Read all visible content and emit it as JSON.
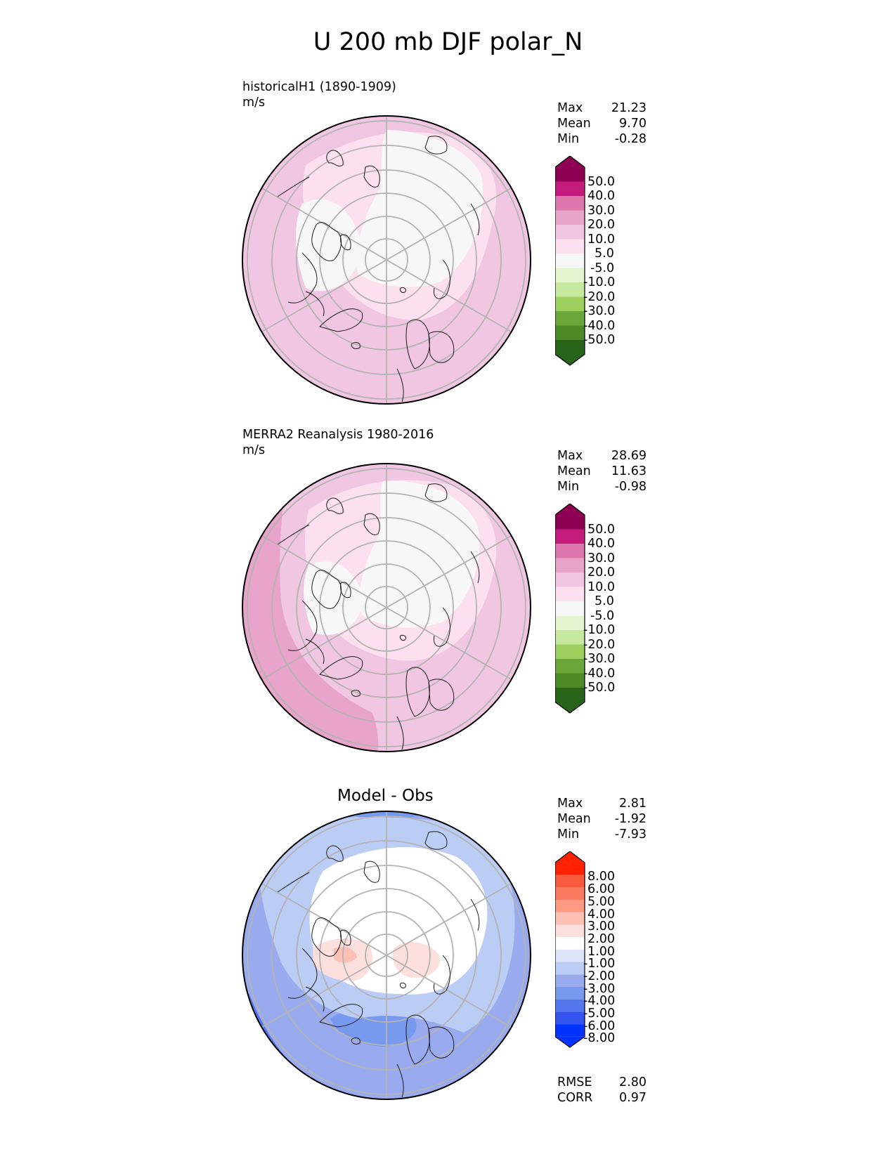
{
  "title": "U 200 mb DJF polar_N",
  "panels": [
    {
      "name": "model",
      "title_line1": "historicalH1 (1890-1909)",
      "title_line2": "m/s",
      "stats": {
        "max_label": "Max",
        "max": "21.23",
        "mean_label": "Mean",
        "mean": "9.70",
        "min_label": "Min",
        "min": "-0.28"
      },
      "colorbar_labels": [
        "50.0",
        "40.0",
        "30.0",
        "20.0",
        "10.0",
        "5.0",
        "-5.0",
        "-10.0",
        "-20.0",
        "-30.0",
        "-40.0",
        "-50.0"
      ]
    },
    {
      "name": "obs",
      "title_line1": "MERRA2 Reanalysis 1980-2016",
      "title_line2": "m/s",
      "stats": {
        "max_label": "Max",
        "max": "28.69",
        "mean_label": "Mean",
        "mean": "11.63",
        "min_label": "Min",
        "min": "-0.98"
      },
      "colorbar_labels": [
        "50.0",
        "40.0",
        "30.0",
        "20.0",
        "10.0",
        "5.0",
        "-5.0",
        "-10.0",
        "-20.0",
        "-30.0",
        "-40.0",
        "-50.0"
      ]
    },
    {
      "name": "diff",
      "title_line1": "Model - Obs",
      "stats": {
        "max_label": "Max",
        "max": "2.81",
        "mean_label": "Mean",
        "mean": "-1.92",
        "min_label": "Min",
        "min": "-7.93"
      },
      "colorbar_labels": [
        "8.00",
        "6.00",
        "5.00",
        "4.00",
        "3.00",
        "2.00",
        "1.00",
        "-1.00",
        "-2.00",
        "-3.00",
        "-4.00",
        "-5.00",
        "-6.00",
        "-8.00"
      ],
      "rmse_label": "RMSE",
      "rmse": "2.80",
      "corr_label": "CORR",
      "corr": "0.97"
    }
  ],
  "chart_data": {
    "type": "heatmap",
    "projection": "north polar stereographic",
    "variable": "U",
    "level": "200 mb",
    "season": "DJF",
    "region": "polar_N",
    "units": "m/s",
    "field_colormap": [
      "#276419",
      "#4d9221",
      "#7fbc41",
      "#b8e186",
      "#e6f5d0",
      "#f7f7f7",
      "#fde0ef",
      "#f1b6da",
      "#de77ae",
      "#c51b7d",
      "#8e0152"
    ],
    "diff_colormap": [
      "#0033ff",
      "#3355ee",
      "#5577ee",
      "#7799ee",
      "#99aaee",
      "#bbccf5",
      "#dde4fa",
      "#ffffff",
      "#fde0dd",
      "#fcc0b4",
      "#fc9a84",
      "#fb7a60",
      "#f85a3e",
      "#ff2200"
    ]
  }
}
